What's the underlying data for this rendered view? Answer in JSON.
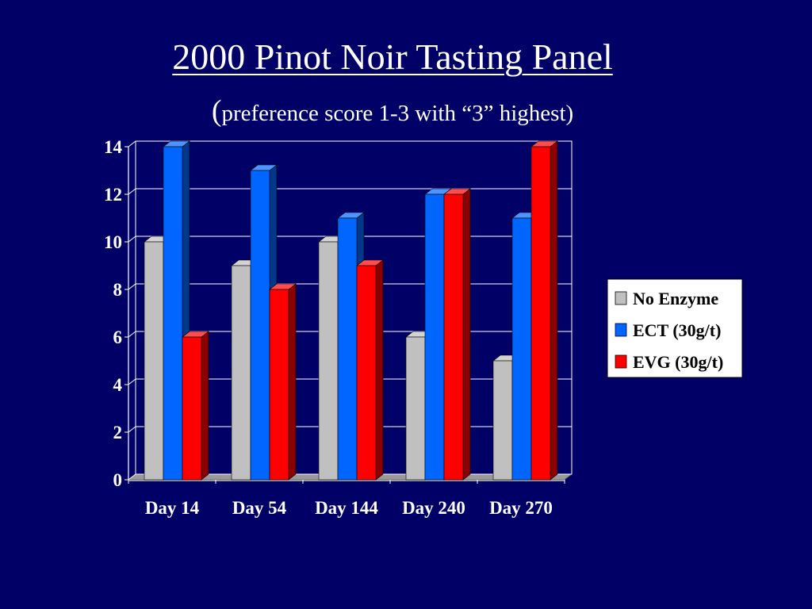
{
  "slide": {
    "background": "#000066",
    "title": "2000 Pinot Noir Tasting Panel",
    "subtitle_paren": "(",
    "subtitle_text": "preference score 1-3 with “3” highest)"
  },
  "chart_data": {
    "type": "bar",
    "style": "3d-clustered-column",
    "title": "",
    "xlabel": "",
    "ylabel": "",
    "categories": [
      "Day 14",
      "Day 54",
      "Day 144",
      "Day 240",
      "Day 270"
    ],
    "series": [
      {
        "name": "No Enzyme",
        "color": "#c0c0c0",
        "values": [
          10,
          9,
          10,
          6,
          5
        ]
      },
      {
        "name": "ECT (30g/t)",
        "color": "#0066ff",
        "values": [
          14,
          13,
          11,
          12,
          11
        ]
      },
      {
        "name": "EVG (30g/t)",
        "color": "#ff0000",
        "values": [
          6,
          8,
          9,
          12,
          14
        ]
      }
    ],
    "ylim": [
      0,
      14
    ],
    "yticks": [
      "0",
      "2",
      "4",
      "6",
      "8",
      "10",
      "12",
      "14"
    ],
    "grid": true,
    "legend": "right",
    "legend_background": "#ffffff"
  }
}
